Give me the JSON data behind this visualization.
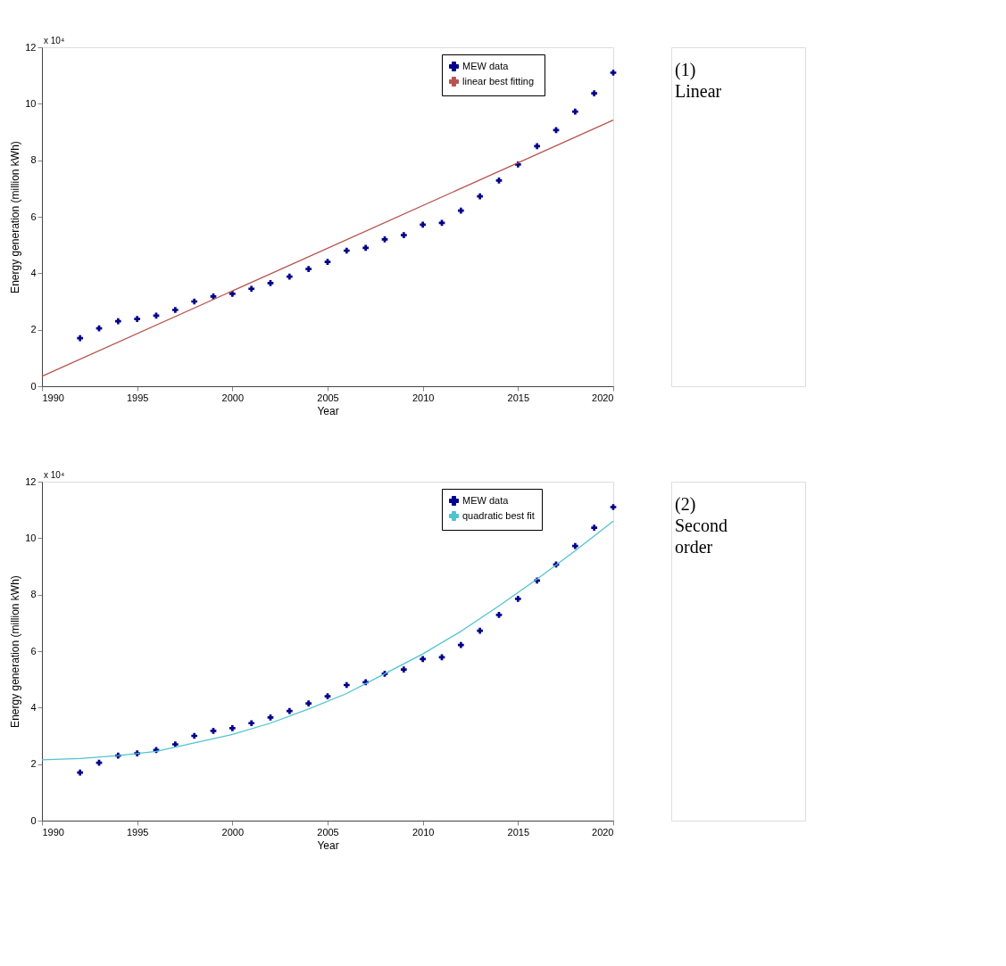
{
  "chart_data": [
    {
      "type": "scatter",
      "xlabel": "Year",
      "ylabel": "Energy generation (million kWh)",
      "xlim": [
        1990,
        2020
      ],
      "ylim": [
        0,
        12
      ],
      "xticks": [
        1990,
        1995,
        2000,
        2005,
        2010,
        2015,
        2020
      ],
      "yticks": [
        0,
        2,
        4,
        6,
        8,
        10,
        12
      ],
      "legend": "top right",
      "annotations": [
        "x 10⁴",
        "(1) Linear"
      ],
      "series": [
        {
          "name": "MEW data",
          "type": "scatter",
          "marker": "cross",
          "color": "#00008b",
          "x": [
            1992,
            1993,
            1994,
            1995,
            1996,
            1997,
            1998,
            1999,
            2000,
            2001,
            2002,
            2003,
            2004,
            2005,
            2006,
            2007,
            2008,
            2009,
            2010,
            2011,
            2012,
            2013,
            2014,
            2015,
            2016,
            2017,
            2018,
            2019,
            2020
          ],
          "values": [
            1.7,
            2.05,
            2.3,
            2.38,
            2.5,
            2.7,
            3.0,
            3.18,
            3.27,
            3.45,
            3.65,
            3.88,
            4.15,
            4.4,
            4.8,
            4.9,
            5.2,
            5.35,
            5.72,
            5.78,
            6.22,
            6.72,
            7.28,
            7.85,
            8.5,
            9.07,
            9.72,
            10.37,
            11.1
          ]
        },
        {
          "name": "linear best  fitting",
          "type": "line",
          "color": "#b85450",
          "x": [
            1990,
            2020
          ],
          "values": [
            0.35,
            9.42
          ]
        }
      ]
    },
    {
      "type": "scatter",
      "xlabel": "Year",
      "ylabel": "Energy generation (million kWh)",
      "xlim": [
        1990,
        2020
      ],
      "ylim": [
        0,
        12
      ],
      "xticks": [
        1990,
        1995,
        2000,
        2005,
        2010,
        2015,
        2020
      ],
      "yticks": [
        0,
        2,
        4,
        6,
        8,
        10,
        12
      ],
      "legend": "top right",
      "annotations": [
        "x 10⁴",
        "(2) Second order"
      ],
      "series": [
        {
          "name": "MEW data",
          "type": "scatter",
          "marker": "cross",
          "color": "#00008b",
          "x": [
            1992,
            1993,
            1994,
            1995,
            1996,
            1997,
            1998,
            1999,
            2000,
            2001,
            2002,
            2003,
            2004,
            2005,
            2006,
            2007,
            2008,
            2009,
            2010,
            2011,
            2012,
            2013,
            2014,
            2015,
            2016,
            2017,
            2018,
            2019,
            2020
          ],
          "values": [
            1.7,
            2.05,
            2.3,
            2.38,
            2.5,
            2.7,
            3.0,
            3.18,
            3.27,
            3.45,
            3.65,
            3.88,
            4.15,
            4.4,
            4.8,
            4.9,
            5.2,
            5.35,
            5.72,
            5.78,
            6.22,
            6.72,
            7.28,
            7.85,
            8.5,
            9.07,
            9.72,
            10.37,
            11.1
          ]
        },
        {
          "name": "quadratic best fit",
          "type": "line",
          "color": "#4fc3d0",
          "x": [
            1990,
            1992,
            1994,
            1996,
            1998,
            2000,
            2002,
            2004,
            2006,
            2008,
            2010,
            2012,
            2014,
            2016,
            2018,
            2020
          ],
          "values": [
            2.15,
            2.2,
            2.3,
            2.45,
            2.75,
            3.05,
            3.45,
            3.95,
            4.5,
            5.2,
            5.9,
            6.7,
            7.6,
            8.55,
            9.55,
            10.6
          ]
        }
      ]
    }
  ]
}
